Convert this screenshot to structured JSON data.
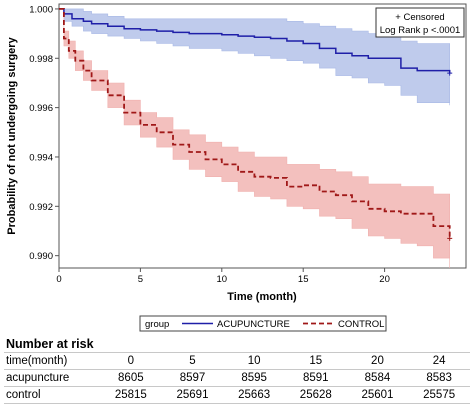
{
  "chart_data": {
    "type": "line",
    "xlabel": "Time (month)",
    "ylabel": "Probability of not undergoing surgery",
    "xlim": [
      0,
      25
    ],
    "ylim": [
      0.9895,
      1.0002
    ],
    "x_ticks": [
      0,
      5,
      10,
      15,
      20
    ],
    "y_ticks": [
      0.99,
      0.992,
      0.994,
      0.996,
      0.998,
      1.0
    ],
    "y_tick_labels": [
      "0.990",
      "0.992",
      "0.994",
      "0.996",
      "0.998",
      "1.000"
    ],
    "legend": {
      "title": "group",
      "entries": [
        "ACUPUNCTURE",
        "CONTROL"
      ],
      "placement": "bottom"
    },
    "annotation": {
      "line1": "+ Censored",
      "line2": "Log Rank p <.0001",
      "placement": "top-right"
    },
    "series": [
      {
        "name": "ACUPUNCTURE",
        "color": "#1f1fa8",
        "band_color": "#a9b9e6",
        "x": [
          0,
          0.3,
          0.8,
          1.5,
          2,
          3,
          4,
          5,
          6,
          7,
          8,
          9,
          10,
          11,
          12,
          13,
          14,
          15,
          16,
          17,
          18,
          19,
          20,
          21,
          22,
          23,
          24
        ],
        "y": [
          1.0,
          0.9998,
          0.9996,
          0.9995,
          0.9994,
          0.9993,
          0.9992,
          0.99915,
          0.9991,
          0.99905,
          0.999,
          0.999,
          0.99895,
          0.9989,
          0.99885,
          0.9988,
          0.9987,
          0.9986,
          0.9984,
          0.9982,
          0.9981,
          0.998,
          0.998,
          0.9976,
          0.9975,
          0.9975,
          0.9974
        ],
        "lower": [
          1.0,
          0.9995,
          0.9993,
          0.9991,
          0.999,
          0.9989,
          0.9988,
          0.9987,
          0.9986,
          0.9985,
          0.9984,
          0.9984,
          0.9983,
          0.9982,
          0.9981,
          0.998,
          0.9979,
          0.9978,
          0.9976,
          0.9973,
          0.9972,
          0.997,
          0.9969,
          0.9965,
          0.9962,
          0.9962,
          0.9961
        ],
        "upper": [
          1.0,
          1.0,
          1.0,
          0.9999,
          0.9998,
          0.9997,
          0.9996,
          0.9996,
          0.9996,
          0.9996,
          0.9996,
          0.9996,
          0.9996,
          0.9996,
          0.9996,
          0.9996,
          0.9995,
          0.9994,
          0.9993,
          0.9992,
          0.9991,
          0.999,
          0.999,
          0.9987,
          0.9986,
          0.9986,
          0.9986
        ]
      },
      {
        "name": "CONTROL",
        "color": "#a01818",
        "band_color": "#f0b0ae",
        "x": [
          0,
          0.3,
          0.6,
          1,
          1.5,
          2,
          3,
          4,
          5,
          6,
          7,
          8,
          9,
          10,
          11,
          12,
          13,
          14,
          15,
          16,
          17,
          18,
          19,
          20,
          21,
          22,
          23,
          24
        ],
        "y": [
          1.0,
          0.9988,
          0.9983,
          0.9979,
          0.9975,
          0.9971,
          0.9965,
          0.9958,
          0.9953,
          0.995,
          0.9945,
          0.9942,
          0.9939,
          0.9937,
          0.9934,
          0.9932,
          0.99315,
          0.9928,
          0.99285,
          0.9926,
          0.99245,
          0.9922,
          0.9919,
          0.9918,
          0.9917,
          0.9917,
          0.9912,
          0.9907
        ],
        "lower": [
          1.0,
          0.9985,
          0.998,
          0.9975,
          0.9971,
          0.9967,
          0.996,
          0.9953,
          0.9948,
          0.9944,
          0.9939,
          0.9935,
          0.9932,
          0.993,
          0.9926,
          0.9924,
          0.9923,
          0.992,
          0.9919,
          0.9916,
          0.9915,
          0.9911,
          0.9908,
          0.9907,
          0.9905,
          0.9904,
          0.9899,
          0.9895
        ],
        "upper": [
          1.0,
          0.9991,
          0.9987,
          0.9983,
          0.9979,
          0.9975,
          0.997,
          0.9963,
          0.9958,
          0.9956,
          0.9951,
          0.9949,
          0.9946,
          0.9944,
          0.9942,
          0.994,
          0.994,
          0.9937,
          0.9937,
          0.9935,
          0.9934,
          0.9932,
          0.9929,
          0.9929,
          0.9928,
          0.9928,
          0.9925,
          0.992
        ]
      }
    ],
    "risk_table": {
      "title": "Number at risk",
      "time_label": "time(month)",
      "times": [
        "0",
        "5",
        "10",
        "15",
        "20",
        "24"
      ],
      "rows": [
        {
          "label": "acupuncture",
          "values": [
            "8605",
            "8597",
            "8595",
            "8591",
            "8584",
            "8583"
          ]
        },
        {
          "label": "control",
          "values": [
            "25815",
            "25691",
            "25663",
            "25628",
            "25601",
            "25575"
          ]
        }
      ]
    }
  }
}
